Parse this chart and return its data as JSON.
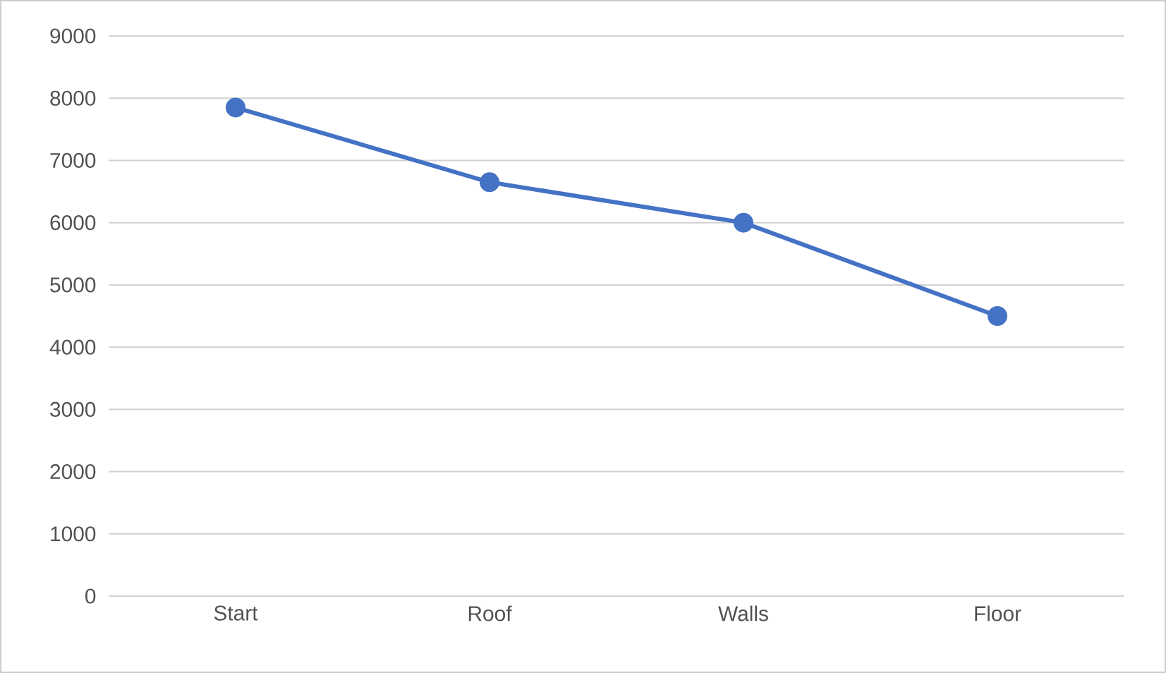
{
  "chart_data": {
    "type": "line",
    "categories": [
      "Start",
      "Roof",
      "Walls",
      "Floor"
    ],
    "values": [
      7850,
      6650,
      6000,
      4500
    ],
    "color": "#4472c4",
    "ylim": [
      0,
      9000
    ],
    "yticks": [
      0,
      1000,
      2000,
      3000,
      4000,
      5000,
      6000,
      7000,
      8000,
      9000
    ],
    "grid": "y",
    "marker": "circle"
  }
}
